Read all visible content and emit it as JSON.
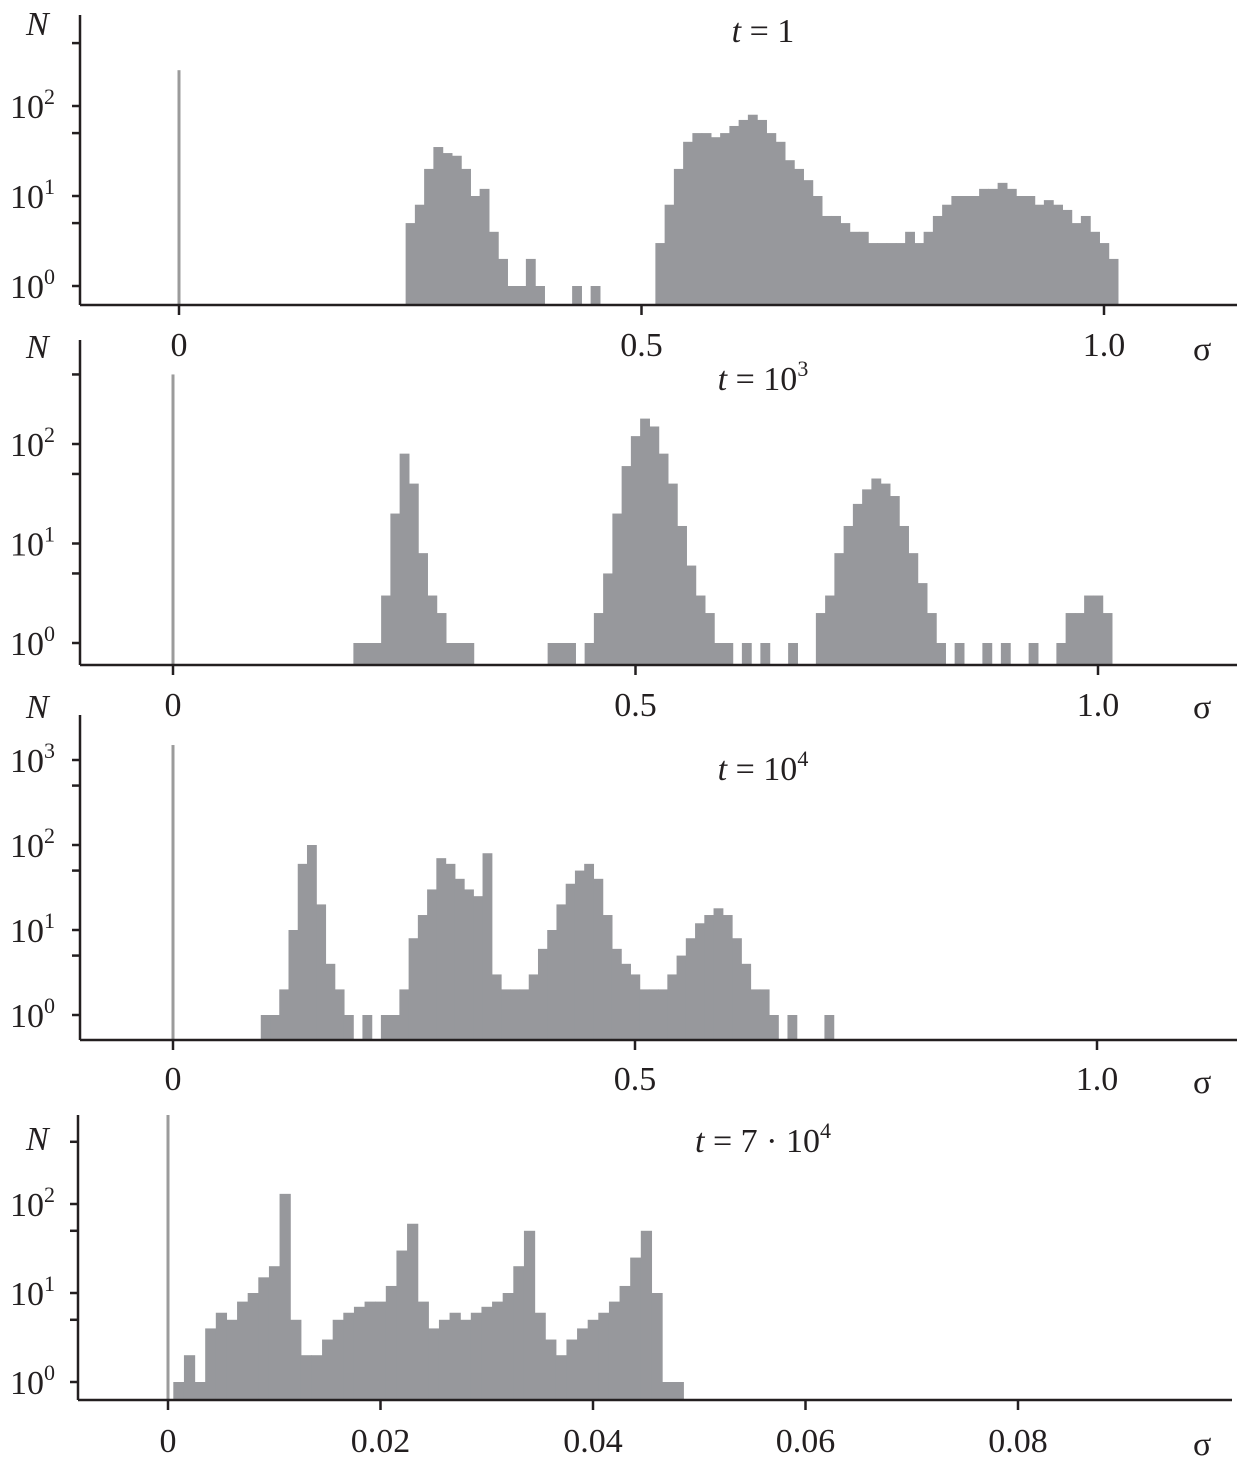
{
  "chart_data": [
    {
      "type": "bar",
      "title": {
        "var": "t",
        "text": " = 1",
        "sup": ""
      },
      "xlabel": "σ",
      "ylabel": "N",
      "yscale": "log",
      "xticks": [
        "0",
        "0.5",
        "1.0"
      ],
      "xtick_values": [
        0,
        0.5,
        1.0
      ],
      "ytick_exponents": [
        "0",
        "1",
        "2"
      ],
      "xlim": [
        -0.11,
        1.15
      ],
      "ylim": [
        0.6,
        700
      ],
      "bin_width": 0.01,
      "spike": [
        0,
        250
      ],
      "bins": [
        [
          0.25,
          5
        ],
        [
          0.26,
          8
        ],
        [
          0.27,
          20
        ],
        [
          0.28,
          35
        ],
        [
          0.29,
          30
        ],
        [
          0.3,
          28
        ],
        [
          0.31,
          20
        ],
        [
          0.32,
          10
        ],
        [
          0.33,
          12
        ],
        [
          0.34,
          4
        ],
        [
          0.35,
          2
        ],
        [
          0.36,
          1
        ],
        [
          0.37,
          1
        ],
        [
          0.38,
          2
        ],
        [
          0.39,
          1
        ],
        [
          0.43,
          1
        ],
        [
          0.45,
          1
        ],
        [
          0.52,
          3
        ],
        [
          0.53,
          8
        ],
        [
          0.54,
          20
        ],
        [
          0.55,
          40
        ],
        [
          0.56,
          50
        ],
        [
          0.57,
          50
        ],
        [
          0.58,
          45
        ],
        [
          0.59,
          50
        ],
        [
          0.6,
          60
        ],
        [
          0.61,
          70
        ],
        [
          0.62,
          80
        ],
        [
          0.63,
          70
        ],
        [
          0.64,
          50
        ],
        [
          0.65,
          40
        ],
        [
          0.66,
          25
        ],
        [
          0.67,
          20
        ],
        [
          0.68,
          15
        ],
        [
          0.69,
          10
        ],
        [
          0.7,
          6
        ],
        [
          0.71,
          6
        ],
        [
          0.72,
          5
        ],
        [
          0.73,
          4
        ],
        [
          0.74,
          4
        ],
        [
          0.75,
          3
        ],
        [
          0.76,
          3
        ],
        [
          0.77,
          3
        ],
        [
          0.78,
          3
        ],
        [
          0.79,
          4
        ],
        [
          0.8,
          3
        ],
        [
          0.81,
          4
        ],
        [
          0.82,
          6
        ],
        [
          0.83,
          8
        ],
        [
          0.84,
          10
        ],
        [
          0.85,
          10
        ],
        [
          0.86,
          10
        ],
        [
          0.87,
          12
        ],
        [
          0.88,
          12
        ],
        [
          0.89,
          14
        ],
        [
          0.9,
          12
        ],
        [
          0.91,
          10
        ],
        [
          0.92,
          10
        ],
        [
          0.93,
          8
        ],
        [
          0.94,
          9
        ],
        [
          0.95,
          8
        ],
        [
          0.96,
          7
        ],
        [
          0.97,
          5
        ],
        [
          0.98,
          6
        ],
        [
          0.99,
          4
        ],
        [
          1.0,
          3
        ],
        [
          1.01,
          2
        ]
      ]
    },
    {
      "type": "bar",
      "title": {
        "var": "t",
        "text": " = 10",
        "sup": "3"
      },
      "xlabel": "σ",
      "ylabel": "N",
      "yscale": "log",
      "xticks": [
        "0",
        "0.5",
        "1.0"
      ],
      "xtick_values": [
        0,
        0.5,
        1.0
      ],
      "ytick_exponents": [
        "0",
        "1",
        "2"
      ],
      "xlim": [
        -0.1,
        1.15
      ],
      "ylim": [
        0.6,
        700
      ],
      "bin_width": 0.01,
      "spike": [
        0,
        500
      ],
      "bins": [
        [
          0.2,
          1
        ],
        [
          0.21,
          1
        ],
        [
          0.22,
          1
        ],
        [
          0.23,
          3
        ],
        [
          0.24,
          20
        ],
        [
          0.25,
          80
        ],
        [
          0.26,
          40
        ],
        [
          0.27,
          8
        ],
        [
          0.28,
          3
        ],
        [
          0.29,
          2
        ],
        [
          0.3,
          1
        ],
        [
          0.31,
          1
        ],
        [
          0.32,
          1
        ],
        [
          0.41,
          1
        ],
        [
          0.42,
          1
        ],
        [
          0.43,
          1
        ],
        [
          0.45,
          1
        ],
        [
          0.46,
          2
        ],
        [
          0.47,
          5
        ],
        [
          0.48,
          20
        ],
        [
          0.49,
          60
        ],
        [
          0.5,
          120
        ],
        [
          0.51,
          180
        ],
        [
          0.52,
          150
        ],
        [
          0.53,
          80
        ],
        [
          0.54,
          40
        ],
        [
          0.55,
          15
        ],
        [
          0.56,
          6
        ],
        [
          0.57,
          3
        ],
        [
          0.58,
          2
        ],
        [
          0.59,
          1
        ],
        [
          0.6,
          1
        ],
        [
          0.62,
          1
        ],
        [
          0.64,
          1
        ],
        [
          0.67,
          1
        ],
        [
          0.7,
          2
        ],
        [
          0.71,
          3
        ],
        [
          0.72,
          8
        ],
        [
          0.73,
          15
        ],
        [
          0.74,
          25
        ],
        [
          0.75,
          35
        ],
        [
          0.76,
          45
        ],
        [
          0.77,
          40
        ],
        [
          0.78,
          30
        ],
        [
          0.79,
          15
        ],
        [
          0.8,
          8
        ],
        [
          0.81,
          4
        ],
        [
          0.82,
          2
        ],
        [
          0.83,
          1
        ],
        [
          0.85,
          1
        ],
        [
          0.88,
          1
        ],
        [
          0.9,
          1
        ],
        [
          0.93,
          1
        ],
        [
          0.96,
          1
        ],
        [
          0.97,
          2
        ],
        [
          0.98,
          2
        ],
        [
          0.99,
          3
        ],
        [
          1.0,
          3
        ],
        [
          1.01,
          2
        ]
      ]
    },
    {
      "type": "bar",
      "title": {
        "var": "t",
        "text": " = 10",
        "sup": "4"
      },
      "xlabel": "σ",
      "ylabel": "N",
      "yscale": "log",
      "xticks": [
        "0",
        "0.5",
        "1.0"
      ],
      "xtick_values": [
        0,
        0.5,
        1.0
      ],
      "ytick_exponents": [
        "0",
        "1",
        "2",
        "3"
      ],
      "xlim": [
        -0.1,
        1.15
      ],
      "ylim": [
        0.5,
        2500
      ],
      "bin_width": 0.01,
      "spike": [
        0,
        1500
      ],
      "bins": [
        [
          0.1,
          1
        ],
        [
          0.11,
          1
        ],
        [
          0.12,
          2
        ],
        [
          0.13,
          10
        ],
        [
          0.14,
          60
        ],
        [
          0.15,
          100
        ],
        [
          0.16,
          20
        ],
        [
          0.17,
          4
        ],
        [
          0.18,
          2
        ],
        [
          0.19,
          1
        ],
        [
          0.21,
          1
        ],
        [
          0.23,
          1
        ],
        [
          0.24,
          1
        ],
        [
          0.25,
          2
        ],
        [
          0.26,
          8
        ],
        [
          0.27,
          15
        ],
        [
          0.28,
          30
        ],
        [
          0.29,
          70
        ],
        [
          0.3,
          60
        ],
        [
          0.31,
          40
        ],
        [
          0.32,
          30
        ],
        [
          0.33,
          25
        ],
        [
          0.34,
          80
        ],
        [
          0.35,
          3
        ],
        [
          0.36,
          2
        ],
        [
          0.37,
          2
        ],
        [
          0.38,
          2
        ],
        [
          0.39,
          3
        ],
        [
          0.4,
          6
        ],
        [
          0.41,
          10
        ],
        [
          0.42,
          20
        ],
        [
          0.43,
          35
        ],
        [
          0.44,
          50
        ],
        [
          0.45,
          60
        ],
        [
          0.46,
          40
        ],
        [
          0.47,
          15
        ],
        [
          0.48,
          6
        ],
        [
          0.49,
          4
        ],
        [
          0.5,
          3
        ],
        [
          0.51,
          2
        ],
        [
          0.52,
          2
        ],
        [
          0.53,
          2
        ],
        [
          0.54,
          3
        ],
        [
          0.55,
          5
        ],
        [
          0.56,
          8
        ],
        [
          0.57,
          12
        ],
        [
          0.58,
          15
        ],
        [
          0.59,
          18
        ],
        [
          0.6,
          15
        ],
        [
          0.61,
          8
        ],
        [
          0.62,
          4
        ],
        [
          0.63,
          2
        ],
        [
          0.64,
          2
        ],
        [
          0.65,
          1
        ],
        [
          0.67,
          1
        ],
        [
          0.71,
          1
        ]
      ]
    },
    {
      "type": "bar",
      "title": {
        "var": "t",
        "text": " = 7 · 10",
        "sup": "4"
      },
      "xlabel": "σ",
      "ylabel": "N",
      "yscale": "log",
      "xticks": [
        "0",
        "0.02",
        "0.04",
        "0.06",
        "0.08"
      ],
      "xtick_values": [
        0,
        0.02,
        0.04,
        0.06,
        0.08
      ],
      "ytick_exponents": [
        "0",
        "1",
        "2"
      ],
      "xlim": [
        -0.0085,
        0.0995
      ],
      "ylim": [
        0.6,
        1500
      ],
      "bin_width": 0.001,
      "spike": [
        0,
        1000
      ],
      "bins": [
        [
          0.001,
          1
        ],
        [
          0.002,
          2
        ],
        [
          0.003,
          1
        ],
        [
          0.004,
          4
        ],
        [
          0.005,
          6
        ],
        [
          0.006,
          5
        ],
        [
          0.007,
          8
        ],
        [
          0.008,
          10
        ],
        [
          0.009,
          15
        ],
        [
          0.01,
          20
        ],
        [
          0.011,
          130
        ],
        [
          0.012,
          5
        ],
        [
          0.013,
          2
        ],
        [
          0.014,
          2
        ],
        [
          0.015,
          3
        ],
        [
          0.016,
          5
        ],
        [
          0.017,
          6
        ],
        [
          0.018,
          7
        ],
        [
          0.019,
          8
        ],
        [
          0.02,
          8
        ],
        [
          0.021,
          12
        ],
        [
          0.022,
          30
        ],
        [
          0.023,
          60
        ],
        [
          0.024,
          8
        ],
        [
          0.025,
          4
        ],
        [
          0.026,
          5
        ],
        [
          0.027,
          6
        ],
        [
          0.028,
          5
        ],
        [
          0.029,
          6
        ],
        [
          0.03,
          7
        ],
        [
          0.031,
          8
        ],
        [
          0.032,
          10
        ],
        [
          0.033,
          20
        ],
        [
          0.034,
          50
        ],
        [
          0.035,
          6
        ],
        [
          0.036,
          3
        ],
        [
          0.037,
          2
        ],
        [
          0.038,
          3
        ],
        [
          0.039,
          4
        ],
        [
          0.04,
          5
        ],
        [
          0.041,
          6
        ],
        [
          0.042,
          8
        ],
        [
          0.043,
          12
        ],
        [
          0.044,
          25
        ],
        [
          0.045,
          50
        ],
        [
          0.046,
          10
        ],
        [
          0.047,
          1
        ],
        [
          0.048,
          1
        ]
      ]
    }
  ],
  "colors": {
    "bars": "#97989c",
    "spike": "#9b9b9b",
    "axis": "#231f20"
  }
}
